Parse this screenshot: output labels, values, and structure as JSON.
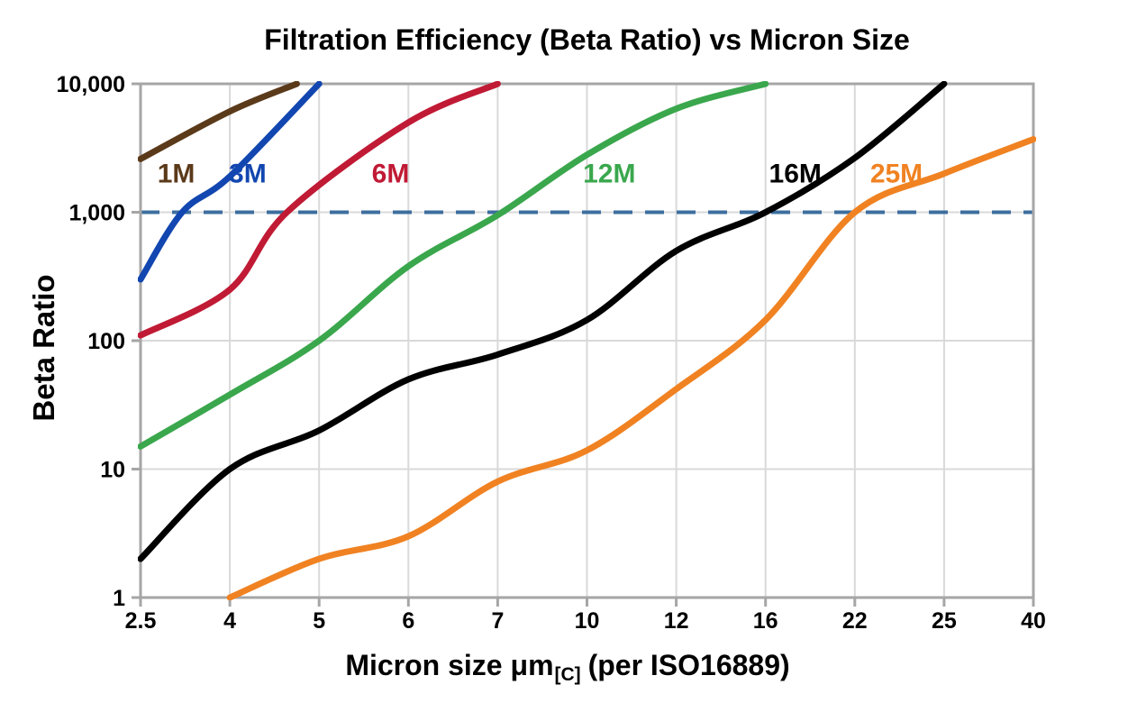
{
  "chart_data": {
    "type": "line",
    "title": "Filtration Efficiency (Beta Ratio) vs Micron Size",
    "ylabel": "Beta Ratio",
    "xlabel_main": "Micron size μm",
    "xlabel_subscript": "[C]",
    "xlabel_suffix": " (per ISO16889)",
    "x_scale": "categorical",
    "y_scale": "log",
    "ylim": [
      1,
      10000
    ],
    "categories": [
      2.5,
      4,
      5,
      6,
      7,
      10,
      12,
      16,
      22,
      25,
      40
    ],
    "x_tick_labels": [
      "2.5",
      "4",
      "5",
      "6",
      "7",
      "10",
      "12",
      "16",
      "22",
      "25",
      "40"
    ],
    "y_ticks": [
      1,
      10,
      100,
      1000,
      10000
    ],
    "y_tick_labels": [
      "1",
      "10",
      "100",
      "1,000",
      "10,000"
    ],
    "grid": true,
    "legend_position": "inline-labels",
    "background_color": "#ffffff",
    "axis_color": "#a6a6a6",
    "grid_color": "#d9d9d9",
    "reference_line": {
      "beta": 1000,
      "style": "dashed",
      "color": "#3c6e9f"
    },
    "series": [
      {
        "name": "1M",
        "color": "#5b3a1a",
        "label": {
          "micron": 3.1,
          "beta": 2000
        },
        "points": [
          [
            2.5,
            2600
          ],
          [
            4,
            6100
          ],
          [
            4.75,
            10000
          ]
        ]
      },
      {
        "name": "3M",
        "color": "#1246b0",
        "label": {
          "micron": 4.2,
          "beta": 2000
        },
        "points": [
          [
            2.5,
            300
          ],
          [
            3.2,
            1000
          ],
          [
            4,
            1900
          ],
          [
            5,
            10000
          ]
        ]
      },
      {
        "name": "6M",
        "color": "#c01a35",
        "label": {
          "micron": 5.8,
          "beta": 2000
        },
        "points": [
          [
            2.5,
            110
          ],
          [
            4,
            250
          ],
          [
            4.64,
            1000
          ],
          [
            6,
            5000
          ],
          [
            7,
            10000
          ]
        ]
      },
      {
        "name": "12M",
        "color": "#3aa74d",
        "label": {
          "micron": 10.5,
          "beta": 2000
        },
        "points": [
          [
            2.5,
            15
          ],
          [
            4,
            38
          ],
          [
            5,
            100
          ],
          [
            6,
            380
          ],
          [
            7,
            950
          ],
          [
            10,
            2800
          ],
          [
            12,
            6400
          ],
          [
            16,
            10000
          ]
        ]
      },
      {
        "name": "16M",
        "color": "#000000",
        "label": {
          "micron": 18,
          "beta": 2000
        },
        "points": [
          [
            2.5,
            2
          ],
          [
            4,
            10
          ],
          [
            5,
            20
          ],
          [
            6,
            50
          ],
          [
            7,
            78
          ],
          [
            10,
            145
          ],
          [
            12,
            500
          ],
          [
            16,
            1000
          ],
          [
            22,
            2650
          ],
          [
            25,
            10000
          ]
        ]
      },
      {
        "name": "25M",
        "color": "#f08222",
        "label": {
          "micron": 23.4,
          "beta": 2000
        },
        "points": [
          [
            4,
            1
          ],
          [
            5,
            2
          ],
          [
            6,
            3
          ],
          [
            7,
            8
          ],
          [
            10,
            14
          ],
          [
            12,
            42
          ],
          [
            16,
            145
          ],
          [
            22,
            1000
          ],
          [
            25,
            2000
          ],
          [
            40,
            3700
          ]
        ]
      }
    ]
  }
}
